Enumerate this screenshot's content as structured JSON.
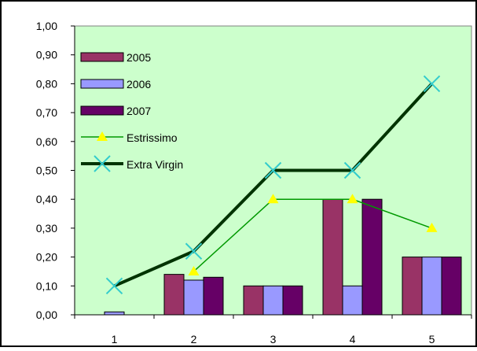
{
  "chart_data": {
    "type": "bar",
    "categories": [
      "1",
      "2",
      "3",
      "4",
      "5"
    ],
    "ylim": [
      0,
      1
    ],
    "y_ticks": [
      "0,00",
      "0,10",
      "0,20",
      "0,30",
      "0,40",
      "0,50",
      "0,60",
      "0,70",
      "0,80",
      "0,90",
      "1,00"
    ],
    "grid": false,
    "legend_position": "top-left",
    "series": [
      {
        "name": "2005",
        "type": "bar",
        "color": "#993366",
        "values": [
          0,
          0.14,
          0.1,
          0.4,
          0.2
        ]
      },
      {
        "name": "2006",
        "type": "bar",
        "color": "#9999ff",
        "values": [
          0.01,
          0.12,
          0.1,
          0.1,
          0.2
        ]
      },
      {
        "name": "2007",
        "type": "bar",
        "color": "#660066",
        "values": [
          0,
          0.13,
          0.1,
          0.4,
          0.2
        ]
      },
      {
        "name": "Estrissimo",
        "type": "line",
        "color": "#009900",
        "marker": "triangle",
        "marker_color": "#ffff00",
        "values": [
          null,
          0.15,
          0.4,
          0.4,
          0.3
        ]
      },
      {
        "name": "Extra Virgin",
        "type": "line",
        "color": "#003300",
        "marker": "x",
        "marker_color": "#33cccc",
        "values": [
          0.1,
          0.22,
          0.5,
          0.5,
          0.8
        ]
      }
    ],
    "plot_background": "#ccffcc"
  }
}
